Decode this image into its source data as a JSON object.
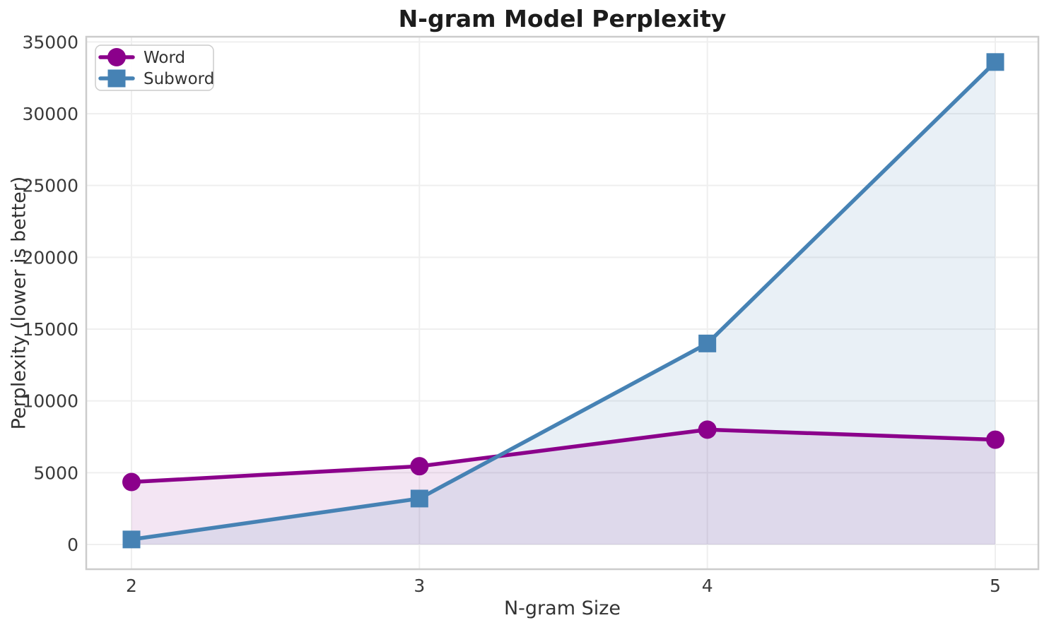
{
  "chart_data": {
    "type": "line",
    "title": "N-gram Model Perplexity",
    "xlabel": "N-gram Size",
    "ylabel": "Perplexity (lower is better)",
    "x": [
      2,
      3,
      4,
      5
    ],
    "xticks": [
      "2",
      "3",
      "4",
      "5"
    ],
    "yticks": [
      0,
      5000,
      10000,
      15000,
      20000,
      25000,
      30000,
      35000
    ],
    "ytick_labels": [
      "0",
      "5000",
      "10000",
      "15000",
      "20000",
      "25000",
      "30000",
      "35000"
    ],
    "ylim": [
      0,
      35000
    ],
    "grid": true,
    "series": [
      {
        "name": "Word",
        "marker": "circle",
        "color": "#8B008B",
        "fill_alpha": 0.1,
        "values": [
          4350,
          5450,
          8000,
          7300
        ]
      },
      {
        "name": "Subword",
        "marker": "square",
        "color": "#4682B4",
        "fill_alpha": 0.12,
        "values": [
          350,
          3200,
          14000,
          33600
        ]
      }
    ],
    "legend": {
      "entries": [
        "Word",
        "Subword"
      ],
      "position": "upper-left"
    },
    "style": {
      "grid_color": "#efefef",
      "spine_color": "#cccccc",
      "tick_color": "#3a3a3a",
      "text_color": "#333333",
      "title_color": "#1c1c1c",
      "background": "#ffffff"
    }
  }
}
